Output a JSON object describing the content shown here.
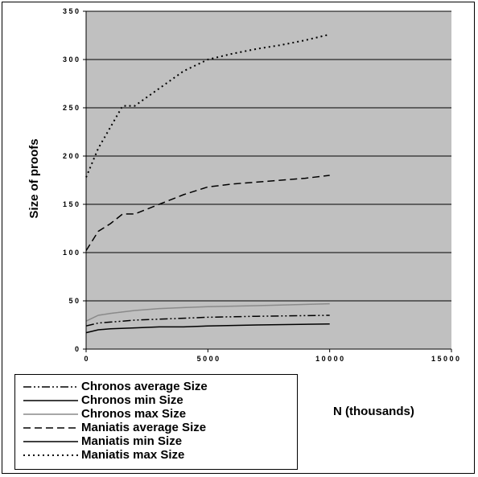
{
  "chart_data": {
    "type": "line",
    "title": "",
    "xlabel": "N (thousands)",
    "ylabel": "Size of proofs",
    "xlim": [
      0,
      15000
    ],
    "ylim": [
      0,
      350
    ],
    "x_ticks": [
      0,
      5000,
      10000,
      15000
    ],
    "y_ticks": [
      0,
      50,
      100,
      150,
      200,
      250,
      300,
      350
    ],
    "x_tick_labels": [
      "0",
      "5 0 0 0",
      "1 0 0 0 0",
      "1 5 0 0 0"
    ],
    "y_tick_labels": [
      "0",
      "5 0",
      "1 0 0",
      "1 5 0",
      "2 0 0",
      "2 5 0",
      "3 0 0",
      "3 5 0"
    ],
    "grid": true,
    "legend_position": "bottom-left",
    "plot_background": "#c0c0c0",
    "series": [
      {
        "name": "Chronos average Size",
        "style": "dashdotdot",
        "color": "#000000",
        "x": [
          0,
          500,
          1000,
          2000,
          3000,
          4000,
          5000,
          7000,
          10000
        ],
        "y": [
          24,
          27,
          28,
          30,
          31,
          32,
          33,
          34,
          35
        ]
      },
      {
        "name": "Chronos min Size",
        "style": "solid",
        "color": "#000000",
        "x": [
          0,
          500,
          1000,
          2000,
          3000,
          4000,
          5000,
          7000,
          10000
        ],
        "y": [
          17,
          20,
          21,
          22,
          23,
          23,
          24,
          25,
          26
        ]
      },
      {
        "name": "Chronos max Size",
        "style": "solid",
        "color": "#8a8a8a",
        "x": [
          0,
          500,
          1000,
          2000,
          3000,
          4000,
          5000,
          7000,
          10000
        ],
        "y": [
          29,
          35,
          37,
          40,
          42,
          43,
          44,
          45,
          47
        ]
      },
      {
        "name": "Maniatis average Size",
        "style": "dashed",
        "color": "#000000",
        "x": [
          0,
          500,
          1000,
          1500,
          2000,
          3000,
          4000,
          5000,
          6000,
          7000,
          8000,
          9000,
          10000
        ],
        "y": [
          102,
          122,
          130,
          140,
          140,
          150,
          160,
          168,
          171,
          173,
          175,
          177,
          180
        ]
      },
      {
        "name": "Maniatis min Size",
        "style": "solid",
        "color": "#000000",
        "x": [],
        "y": []
      },
      {
        "name": "Maniatis max Size",
        "style": "dotted",
        "color": "#000000",
        "x": [
          0,
          500,
          1000,
          1500,
          2000,
          3000,
          4000,
          5000,
          6000,
          7000,
          8000,
          9000,
          10000
        ],
        "y": [
          178,
          208,
          230,
          252,
          252,
          270,
          288,
          300,
          306,
          311,
          315,
          320,
          326
        ]
      }
    ]
  }
}
